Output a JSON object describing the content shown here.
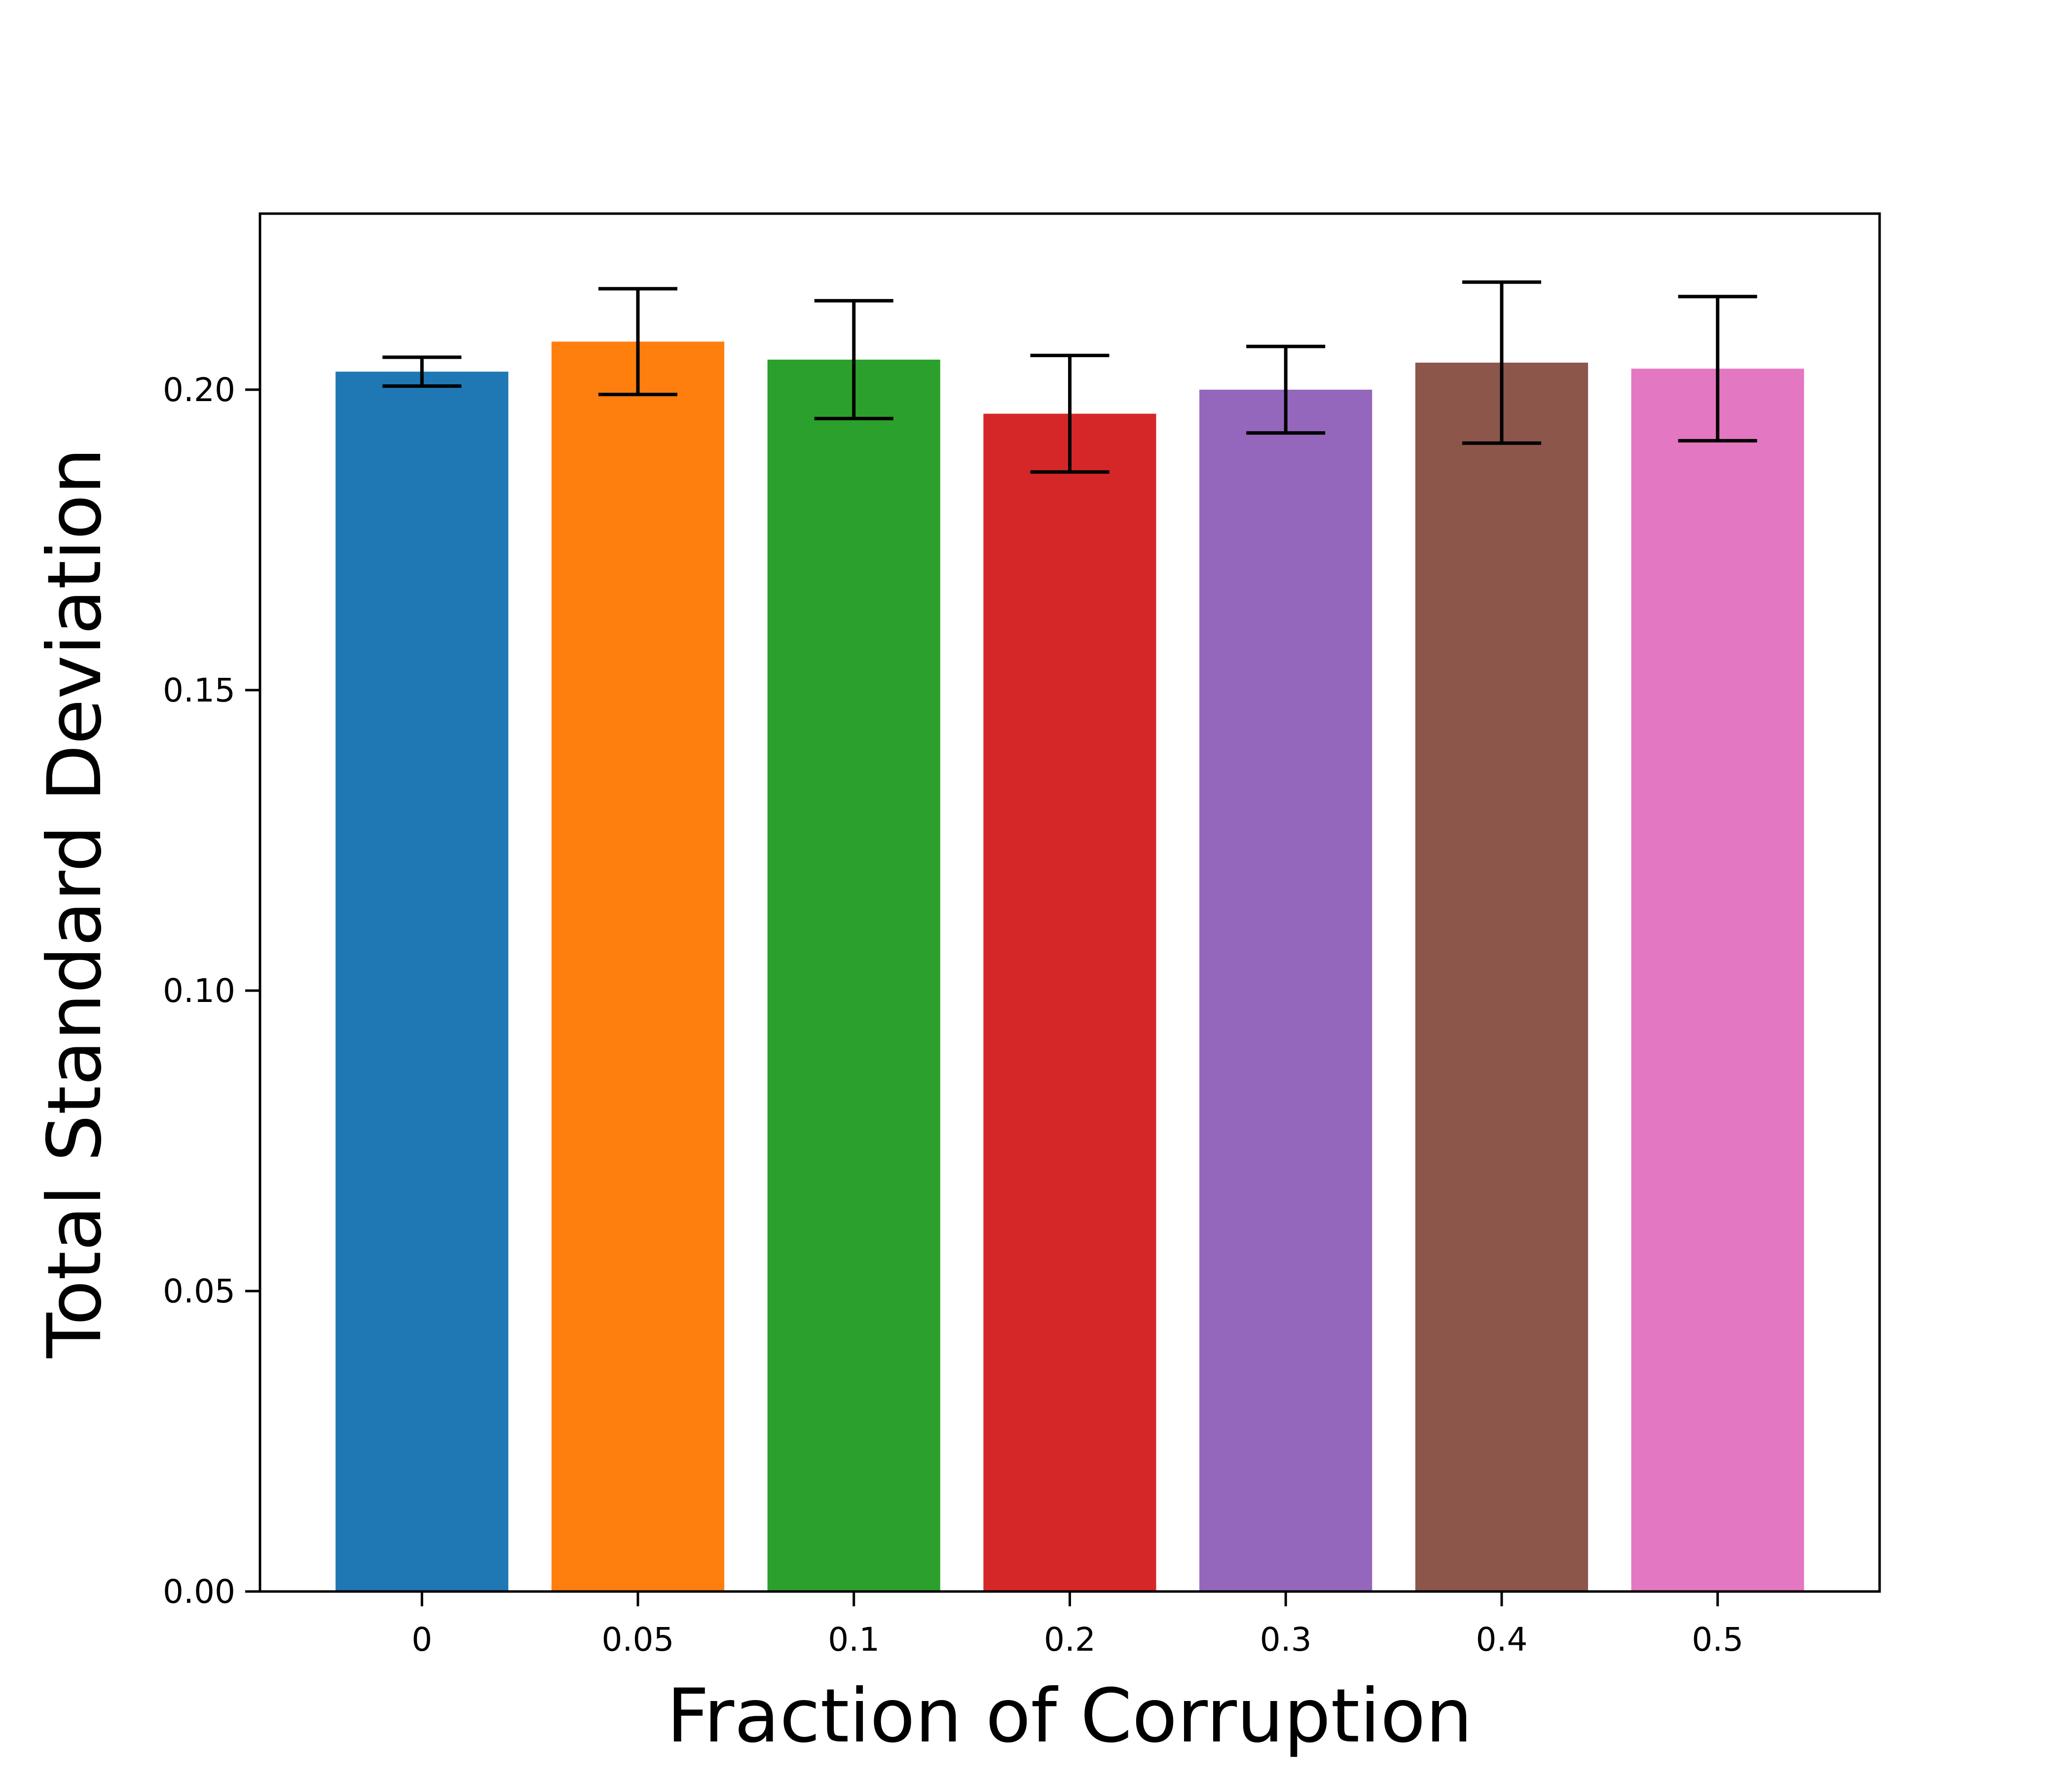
{
  "chart_data": {
    "type": "bar",
    "title": "",
    "xlabel": "Fraction of Corruption",
    "ylabel": "Total Standard Deviation",
    "categories": [
      "0",
      "0.05",
      "0.1",
      "0.2",
      "0.3",
      "0.4",
      "0.5"
    ],
    "values": [
      0.203,
      0.208,
      0.205,
      0.196,
      0.2,
      0.2045,
      0.2035
    ],
    "error": [
      0.0024,
      0.0088,
      0.0098,
      0.0097,
      0.0072,
      0.0134,
      0.012
    ],
    "colors": [
      "#1f77b4",
      "#ff7f0e",
      "#2ca02c",
      "#d62728",
      "#9467bd",
      "#8c564b",
      "#e377c2"
    ],
    "ylim": [
      0,
      0.2293
    ],
    "yticks": [
      "0.00",
      "0.05",
      "0.10",
      "0.15",
      "0.20"
    ],
    "grid": false,
    "legend": "none"
  }
}
